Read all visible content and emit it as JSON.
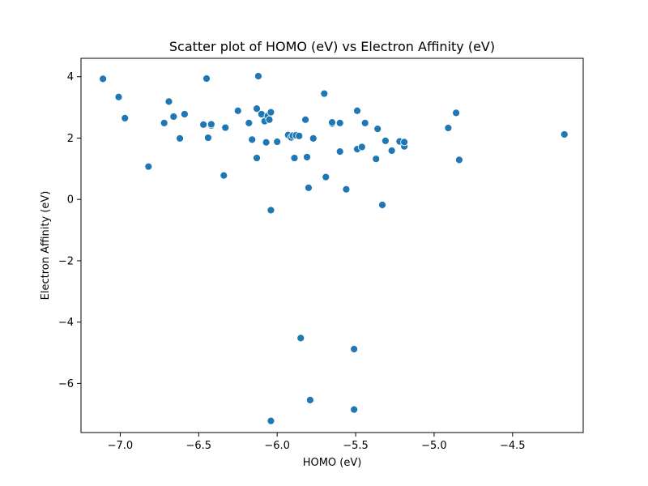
{
  "chart_data": {
    "type": "scatter",
    "title": "Scatter plot of HOMO (eV) vs Electron Affinity (eV)",
    "xlabel": "HOMO (eV)",
    "ylabel": "Electron Affinity (eV)",
    "xlim": [
      -7.25,
      -4.05
    ],
    "ylim": [
      -7.6,
      4.6
    ],
    "xticks": [
      -7.0,
      -6.5,
      -6.0,
      -5.5,
      -5.0,
      -4.5
    ],
    "xtick_labels": [
      "−7.0",
      "−6.5",
      "−6.0",
      "−5.5",
      "−5.0",
      "−4.5"
    ],
    "yticks": [
      -6,
      -4,
      -2,
      0,
      2,
      4
    ],
    "ytick_labels": [
      "−6",
      "−4",
      "−2",
      "0",
      "2",
      "4"
    ],
    "grid": false,
    "color": "#1f77b4",
    "points": [
      [
        -7.11,
        3.93
      ],
      [
        -7.01,
        3.34
      ],
      [
        -6.97,
        2.65
      ],
      [
        -6.82,
        1.07
      ],
      [
        -6.72,
        2.49
      ],
      [
        -6.69,
        3.19
      ],
      [
        -6.66,
        2.7
      ],
      [
        -6.62,
        1.99
      ],
      [
        -6.59,
        2.78
      ],
      [
        -6.47,
        2.44
      ],
      [
        -6.45,
        3.94
      ],
      [
        -6.44,
        2.01
      ],
      [
        -6.42,
        2.41
      ],
      [
        -6.42,
        2.45
      ],
      [
        -6.34,
        0.78
      ],
      [
        -6.33,
        2.34
      ],
      [
        -6.25,
        2.89
      ],
      [
        -6.18,
        2.49
      ],
      [
        -6.16,
        1.95
      ],
      [
        -6.13,
        2.96
      ],
      [
        -6.13,
        1.35
      ],
      [
        -6.12,
        4.02
      ],
      [
        -6.1,
        2.78
      ],
      [
        -6.08,
        2.55
      ],
      [
        -6.07,
        1.86
      ],
      [
        -6.06,
        2.72
      ],
      [
        -6.05,
        2.6
      ],
      [
        -6.04,
        2.84
      ],
      [
        -6.04,
        -0.35
      ],
      [
        -6.0,
        1.88
      ],
      [
        -5.93,
        2.1
      ],
      [
        -5.91,
        2.02
      ],
      [
        -5.9,
        2.08
      ],
      [
        -5.89,
        1.35
      ],
      [
        -5.88,
        2.09
      ],
      [
        -5.86,
        2.07
      ],
      [
        -5.85,
        -4.52
      ],
      [
        -5.82,
        2.6
      ],
      [
        -5.81,
        1.38
      ],
      [
        -5.8,
        0.38
      ],
      [
        -5.79,
        -6.54
      ],
      [
        -5.77,
        1.99
      ],
      [
        -5.7,
        3.45
      ],
      [
        -5.69,
        0.73
      ],
      [
        -5.65,
        2.47
      ],
      [
        -5.65,
        2.51
      ],
      [
        -5.6,
        2.49
      ],
      [
        -5.6,
        1.56
      ],
      [
        -5.56,
        0.33
      ],
      [
        -5.51,
        -4.88
      ],
      [
        -5.51,
        -6.85
      ],
      [
        -5.49,
        2.89
      ],
      [
        -5.49,
        1.64
      ],
      [
        -5.46,
        1.71
      ],
      [
        -5.44,
        2.49
      ],
      [
        -5.37,
        1.32
      ],
      [
        -5.36,
        2.3
      ],
      [
        -5.33,
        -0.18
      ],
      [
        -5.31,
        1.91
      ],
      [
        -5.27,
        1.59
      ],
      [
        -5.22,
        1.89
      ],
      [
        -5.19,
        1.73
      ],
      [
        -5.19,
        1.87
      ],
      [
        -4.91,
        2.33
      ],
      [
        -4.86,
        2.82
      ],
      [
        -4.84,
        1.29
      ],
      [
        -4.17,
        2.12
      ],
      [
        -6.04,
        -7.22
      ]
    ]
  }
}
